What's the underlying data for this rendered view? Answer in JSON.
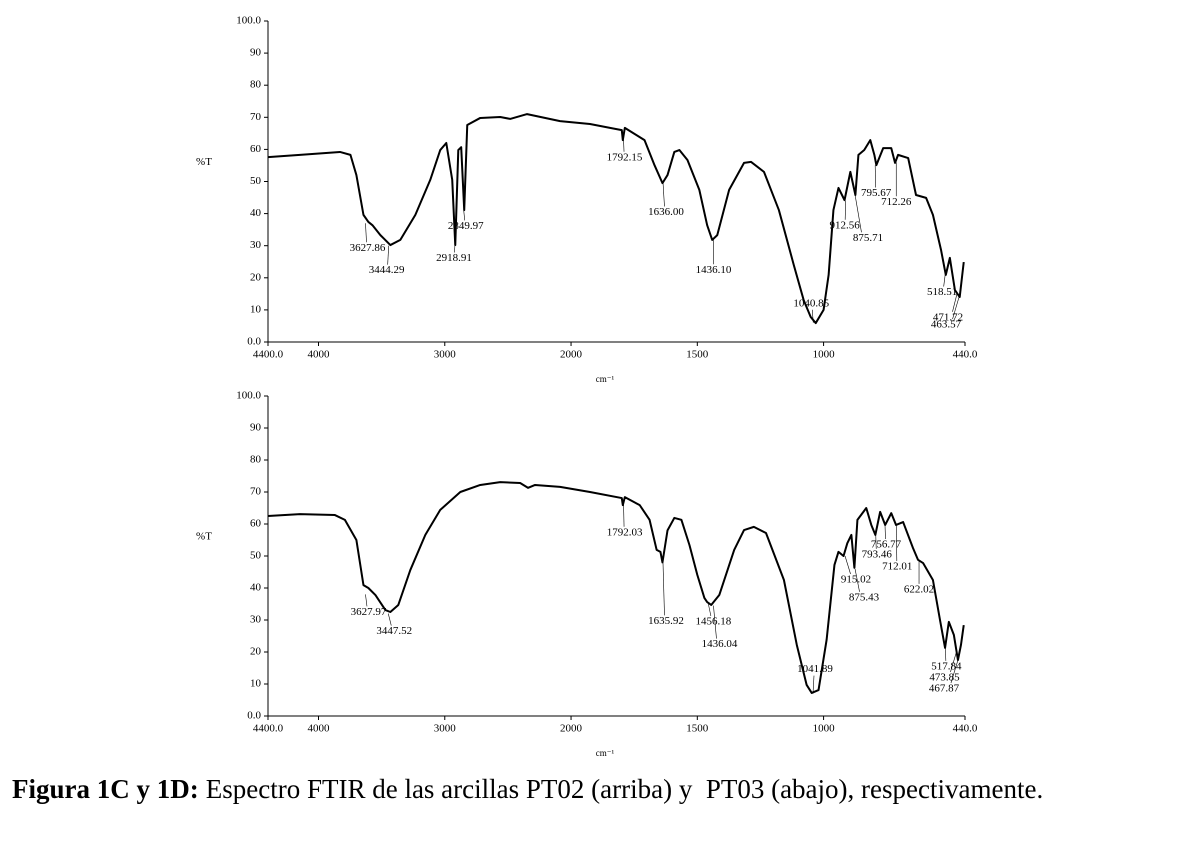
{
  "chart_data": [
    {
      "type": "line",
      "xlabel": "cm⁻¹",
      "ylabel": "%T",
      "color": "#000000",
      "xlim": [
        4400,
        440
      ],
      "x_scale_break": 2000,
      "x_scale_ratio": 2,
      "xticks": [
        {
          "value": 4400,
          "label": "4400.0"
        },
        4000,
        3000,
        2000,
        1500,
        1000,
        {
          "value": 440,
          "label": "440.0"
        }
      ],
      "ylim": [
        0,
        100
      ],
      "yticks": [
        {
          "value": 0,
          "label": "0.0"
        },
        10,
        20,
        30,
        40,
        50,
        60,
        70,
        80,
        90,
        {
          "value": 100,
          "label": "100.0"
        }
      ],
      "x": [
        4400,
        4147,
        3830,
        3747,
        3700,
        3644,
        3605,
        3573,
        3510,
        3431,
        3352,
        3233,
        3115,
        3036,
        2988,
        2941,
        2917,
        2893,
        2870,
        2846,
        2822,
        2719,
        2561,
        2482,
        2348,
        2087,
        1925,
        1799,
        1795,
        1787,
        1709,
        1669,
        1638,
        1618,
        1591,
        1571,
        1539,
        1492,
        1461,
        1441,
        1421,
        1374,
        1315,
        1287,
        1236,
        1177,
        1118,
        1079,
        1051,
        1031,
        1000,
        980,
        961,
        941,
        917,
        894,
        874,
        862,
        839,
        815,
        799,
        791,
        764,
        732,
        717,
        705,
        665,
        634,
        594,
        567,
        535,
        516,
        500,
        480,
        461,
        445
      ],
      "values": [
        57.6,
        58.3,
        59.2,
        58.3,
        52,
        39.6,
        37.4,
        36.4,
        33.3,
        30.2,
        31.8,
        39.6,
        50.5,
        59.8,
        62,
        50.5,
        30.2,
        59.8,
        60.7,
        41.1,
        67.6,
        69.8,
        70.1,
        69.5,
        71,
        68.8,
        67.9,
        66,
        62.9,
        66.7,
        62.9,
        55,
        49.5,
        52,
        59.2,
        59.8,
        56.7,
        47.4,
        36.4,
        31.8,
        33.3,
        47.4,
        55.8,
        56.1,
        53,
        41.1,
        24,
        13.1,
        7.8,
        5.9,
        10,
        20.9,
        41.1,
        48,
        44.2,
        53,
        45.8,
        58.3,
        59.8,
        62.9,
        58.3,
        55.1,
        60.4,
        60.4,
        55.8,
        58.3,
        57.3,
        45.8,
        44.9,
        39.6,
        28.7,
        20.9,
        26.2,
        16.2,
        14,
        24.9
      ],
      "annotations": [
        {
          "label": "3627.86",
          "x": 3627.86,
          "y": 37
        },
        {
          "label": "3444.29",
          "x": 3444.29,
          "y": 30
        },
        {
          "label": "2849.97",
          "x": 2849.97,
          "y": 41
        },
        {
          "label": "2918.91",
          "x": 2918.91,
          "y": 31
        },
        {
          "label": "1792.15",
          "x": 1792.15,
          "y": 63
        },
        {
          "label": "1636.00",
          "x": 1636.0,
          "y": 50
        },
        {
          "label": "1436.10",
          "x": 1436.1,
          "y": 32
        },
        {
          "label": "1040.85",
          "x": 1040.85,
          "y": 6
        },
        {
          "label": "912.56",
          "x": 912.56,
          "y": 44
        },
        {
          "label": "875.71",
          "x": 875.71,
          "y": 46
        },
        {
          "label": "795.67",
          "x": 795.67,
          "y": 55
        },
        {
          "label": "712.26",
          "x": 712.26,
          "y": 56
        },
        {
          "label": "518.51",
          "x": 518.51,
          "y": 21
        },
        {
          "label": "471.72",
          "x": 471.72,
          "y": 15
        },
        {
          "label": "463.57",
          "x": 463.57,
          "y": 14
        }
      ]
    },
    {
      "type": "line",
      "xlabel": "cm⁻¹",
      "ylabel": "%T",
      "color": "#000000",
      "xlim": [
        4400,
        440
      ],
      "x_scale_break": 2000,
      "x_scale_ratio": 2,
      "xticks": [
        {
          "value": 4400,
          "label": "4400.0"
        },
        4000,
        3000,
        2000,
        1500,
        1000,
        {
          "value": 440,
          "label": "440.0"
        }
      ],
      "ylim": [
        0,
        100
      ],
      "yticks": [
        {
          "value": 0,
          "label": "0.0"
        },
        10,
        20,
        30,
        40,
        50,
        60,
        70,
        80,
        90,
        {
          "value": 100,
          "label": "100.0"
        }
      ],
      "x": [
        4400,
        4147,
        3870,
        3791,
        3700,
        3644,
        3605,
        3549,
        3470,
        3431,
        3368,
        3273,
        3154,
        3036,
        2877,
        2719,
        2561,
        2403,
        2340,
        2285,
        2087,
        1925,
        1799,
        1795,
        1787,
        1728,
        1689,
        1661,
        1646,
        1638,
        1618,
        1591,
        1563,
        1531,
        1500,
        1472,
        1461,
        1445,
        1413,
        1354,
        1315,
        1276,
        1228,
        1157,
        1106,
        1067,
        1047,
        1020,
        988,
        957,
        941,
        921,
        906,
        890,
        878,
        866,
        831,
        811,
        795,
        776,
        756,
        732,
        713,
        685,
        646,
        626,
        606,
        567,
        539,
        519,
        504,
        484,
        468,
        456,
        445
      ],
      "values": [
        62.5,
        63.1,
        62.8,
        61.3,
        55,
        40.9,
        40,
        37.8,
        33.1,
        32.5,
        34.7,
        45.6,
        56.6,
        64.4,
        70,
        72.2,
        73.1,
        72.8,
        71.3,
        72.2,
        71.6,
        70,
        68.1,
        65.9,
        68.4,
        65.9,
        61.3,
        51.9,
        51.3,
        48,
        58,
        61.9,
        61.3,
        53.4,
        44.1,
        36.9,
        35.6,
        34.7,
        37.8,
        51.9,
        58.1,
        59.1,
        57.2,
        42.5,
        22.2,
        9.7,
        7.2,
        8.1,
        23.8,
        47.2,
        51.3,
        50,
        54,
        56.6,
        46.3,
        61.3,
        65,
        59.7,
        56.6,
        63.8,
        59.7,
        63.4,
        59.7,
        60.6,
        52.5,
        48.8,
        47.8,
        42.5,
        30,
        21.3,
        29.4,
        25.3,
        17.5,
        22.2,
        28.4
      ],
      "annotations": [
        {
          "label": "3627.97",
          "x": 3627.97,
          "y": 38
        },
        {
          "label": "3447.52",
          "x": 3447.52,
          "y": 32
        },
        {
          "label": "1792.03",
          "x": 1792.03,
          "y": 66
        },
        {
          "label": "1635.92",
          "x": 1635.92,
          "y": 48
        },
        {
          "label": "1456.18",
          "x": 1456.18,
          "y": 35
        },
        {
          "label": "1436.04",
          "x": 1436.04,
          "y": 34.5
        },
        {
          "label": "1041.89",
          "x": 1041.89,
          "y": 7
        },
        {
          "label": "915.02",
          "x": 915.02,
          "y": 50
        },
        {
          "label": "875.43",
          "x": 875.43,
          "y": 46
        },
        {
          "label": "793.46",
          "x": 793.46,
          "y": 56.6
        },
        {
          "label": "756.77",
          "x": 756.77,
          "y": 59.7
        },
        {
          "label": "712.01",
          "x": 712.01,
          "y": 59.7
        },
        {
          "label": "622.02",
          "x": 622.02,
          "y": 48.8
        },
        {
          "label": "517.84",
          "x": 517.84,
          "y": 21.3
        },
        {
          "label": "473.85",
          "x": 473.85,
          "y": 20
        },
        {
          "label": "467.87",
          "x": 467.87,
          "y": 17.5
        }
      ]
    }
  ],
  "caption": {
    "label": "Figura 1C y 1D:",
    "text": "Espectro FTIR de las arcillas PT02 (arriba) y  PT03 (abajo), respectivamente."
  }
}
